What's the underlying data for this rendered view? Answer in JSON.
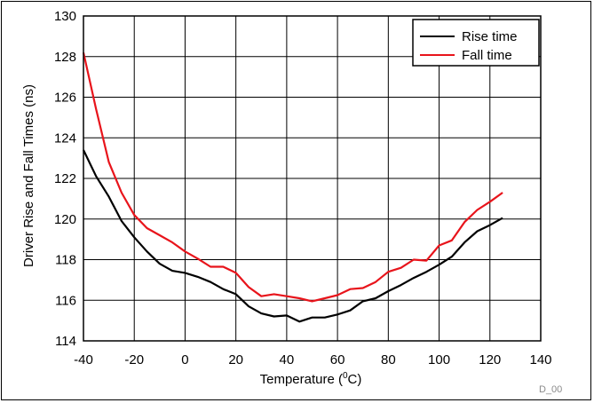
{
  "chart_data": {
    "type": "line",
    "xlabel": "Temperature (",
    "xlabel_sup": "0",
    "xlabel_end": "C)",
    "ylabel": "Driver Rise and Fall Times (ns)",
    "xlim": [
      -40,
      140
    ],
    "ylim": [
      114,
      130
    ],
    "xticks": [
      -40,
      -20,
      0,
      20,
      40,
      60,
      80,
      100,
      120,
      140
    ],
    "yticks": [
      114,
      116,
      118,
      120,
      122,
      124,
      126,
      128,
      130
    ],
    "grid": true,
    "legend_position": "top-right",
    "series": [
      {
        "name": "Rise time",
        "color": "#000000",
        "x": [
          -40,
          -35,
          -30,
          -25,
          -20,
          -15,
          -10,
          -5,
          0,
          5,
          10,
          15,
          20,
          25,
          30,
          35,
          40,
          45,
          50,
          55,
          60,
          65,
          70,
          75,
          80,
          85,
          90,
          95,
          100,
          105,
          110,
          115,
          120,
          125
        ],
        "y": [
          123.4,
          122.1,
          121.1,
          119.9,
          119.1,
          118.4,
          117.8,
          117.45,
          117.35,
          117.15,
          116.9,
          116.55,
          116.3,
          115.7,
          115.35,
          115.2,
          115.25,
          114.95,
          115.15,
          115.15,
          115.3,
          115.5,
          115.95,
          116.1,
          116.45,
          116.75,
          117.1,
          117.4,
          117.75,
          118.15,
          118.85,
          119.4,
          119.7,
          120.05
        ]
      },
      {
        "name": "Fall time",
        "color": "#e8141b",
        "x": [
          -40,
          -35,
          -30,
          -25,
          -20,
          -15,
          -10,
          -5,
          0,
          5,
          10,
          15,
          20,
          25,
          30,
          35,
          40,
          45,
          50,
          55,
          60,
          65,
          70,
          75,
          80,
          85,
          90,
          95,
          100,
          105,
          110,
          115,
          120,
          125
        ],
        "y": [
          128.2,
          125.4,
          122.8,
          121.3,
          120.2,
          119.55,
          119.2,
          118.85,
          118.4,
          118.05,
          117.65,
          117.65,
          117.35,
          116.65,
          116.2,
          116.3,
          116.2,
          116.1,
          115.95,
          116.1,
          116.25,
          116.55,
          116.6,
          116.9,
          117.4,
          117.6,
          118.0,
          117.95,
          118.7,
          118.95,
          119.85,
          120.45,
          120.85,
          121.3
        ]
      }
    ]
  },
  "figure_id": "D_00"
}
